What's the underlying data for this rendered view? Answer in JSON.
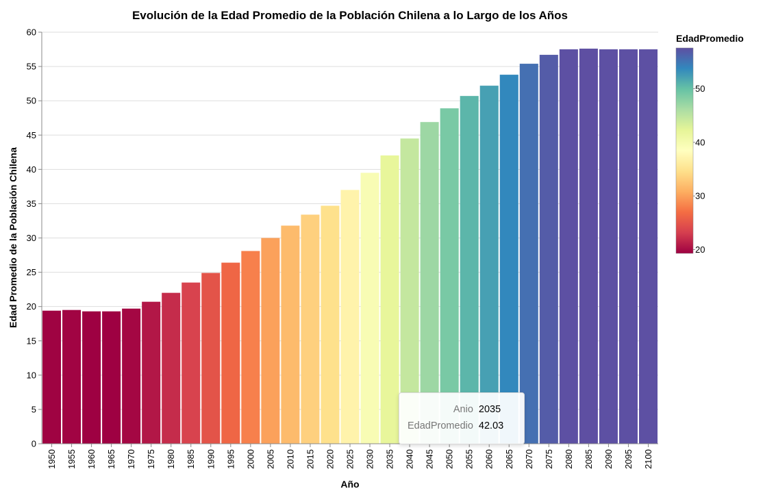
{
  "chart_data": {
    "type": "bar",
    "title": "Evolución de la Edad Promedio de la Población Chilena a lo Largo de los Años",
    "xlabel": "Año",
    "ylabel": "Edad Promedio de la Población Chilena",
    "ylim": [
      0,
      60
    ],
    "yticks": [
      "0",
      "5",
      "10",
      "15",
      "20",
      "25",
      "30",
      "35",
      "40",
      "45",
      "50",
      "55",
      "60"
    ],
    "grid": true,
    "categories": [
      "1950",
      "1955",
      "1960",
      "1965",
      "1970",
      "1975",
      "1980",
      "1985",
      "1990",
      "1995",
      "2000",
      "2005",
      "2010",
      "2015",
      "2020",
      "2025",
      "2030",
      "2035",
      "2040",
      "2045",
      "2050",
      "2055",
      "2060",
      "2065",
      "2070",
      "2075",
      "2080",
      "2085",
      "2090",
      "2095",
      "2100"
    ],
    "values": [
      19.4,
      19.5,
      19.3,
      19.3,
      19.7,
      20.7,
      22.0,
      23.5,
      24.9,
      26.4,
      28.1,
      30.0,
      31.8,
      33.4,
      34.7,
      37.0,
      39.5,
      42.03,
      44.5,
      46.9,
      48.9,
      50.7,
      52.2,
      53.8,
      55.4,
      56.7,
      57.5,
      57.6,
      57.5,
      57.5,
      57.5
    ],
    "color_scale": "spectral",
    "legend": {
      "title": "EdadPromedio",
      "position": "right",
      "domain": [
        19.3,
        57.6
      ],
      "ticks": [
        "20",
        "30",
        "40",
        "50"
      ]
    },
    "tooltip": {
      "rows": [
        {
          "key": "Anio",
          "value": "2035"
        },
        {
          "key": "EdadPromedio",
          "value": "42.03"
        }
      ]
    }
  }
}
